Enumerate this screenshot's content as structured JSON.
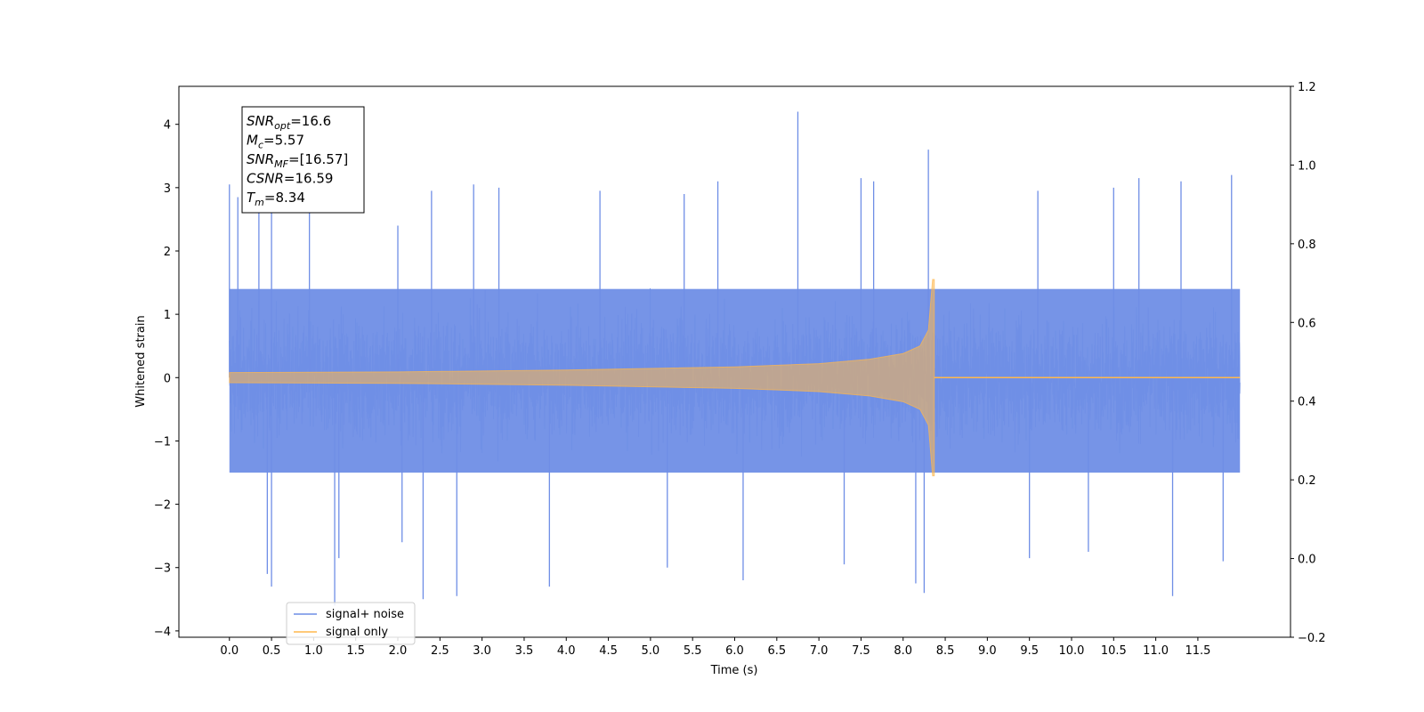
{
  "chart_data": {
    "type": "line",
    "xlabel": "Time (s)",
    "ylabel": "Whitened strain",
    "xlim": [
      -0.6,
      12.6
    ],
    "ylim": [
      -4.1,
      4.6
    ],
    "y2lim": [
      -0.2,
      1.2
    ],
    "x_ticks": [
      0.0,
      0.5,
      1.0,
      1.5,
      2.0,
      2.5,
      3.0,
      3.5,
      4.0,
      4.5,
      5.0,
      5.5,
      6.0,
      6.5,
      7.0,
      7.5,
      8.0,
      8.5,
      9.0,
      9.5,
      10.0,
      10.5,
      11.0,
      11.5
    ],
    "x_tick_labels": [
      "0.0",
      "0.5",
      "1.0",
      "1.5",
      "2.0",
      "2.5",
      "3.0",
      "3.5",
      "4.0",
      "4.5",
      "5.0",
      "5.5",
      "6.0",
      "6.5",
      "7.0",
      "7.5",
      "8.0",
      "8.5",
      "9.0",
      "9.5",
      "10.0",
      "10.5",
      "11.0",
      "11.5"
    ],
    "y_ticks": [
      -4,
      -3,
      -2,
      -1,
      0,
      1,
      2,
      3,
      4
    ],
    "y_tick_labels": [
      "−4",
      "−3",
      "−2",
      "−1",
      "0",
      "1",
      "2",
      "3",
      "4"
    ],
    "y2_ticks": [
      -0.2,
      0.0,
      0.2,
      0.4,
      0.6,
      0.8,
      1.0,
      1.2
    ],
    "y2_tick_labels": [
      "−0.2",
      "0.0",
      "0.2",
      "0.4",
      "0.6",
      "0.8",
      "1.0",
      "1.2"
    ],
    "grid": false,
    "legend_position": "lower-left",
    "series": [
      {
        "name": "signal+ noise",
        "color": "#6f8ee6",
        "x_range": [
          0.0,
          12.0
        ],
        "noise_band": [
          -1.5,
          1.4
        ],
        "peaks_positive": [
          {
            "x": 0.0,
            "y": 3.05
          },
          {
            "x": 0.1,
            "y": 2.85
          },
          {
            "x": 0.35,
            "y": 2.6
          },
          {
            "x": 0.5,
            "y": 2.65
          },
          {
            "x": 0.95,
            "y": 3.1
          },
          {
            "x": 2.0,
            "y": 2.4
          },
          {
            "x": 2.4,
            "y": 2.95
          },
          {
            "x": 2.9,
            "y": 3.05
          },
          {
            "x": 3.2,
            "y": 3.0
          },
          {
            "x": 4.4,
            "y": 2.95
          },
          {
            "x": 5.4,
            "y": 2.9
          },
          {
            "x": 5.8,
            "y": 3.1
          },
          {
            "x": 6.75,
            "y": 4.2
          },
          {
            "x": 7.5,
            "y": 3.15
          },
          {
            "x": 7.65,
            "y": 3.1
          },
          {
            "x": 8.3,
            "y": 3.6
          },
          {
            "x": 9.6,
            "y": 2.95
          },
          {
            "x": 10.5,
            "y": 3.0
          },
          {
            "x": 10.8,
            "y": 3.15
          },
          {
            "x": 11.3,
            "y": 3.1
          },
          {
            "x": 11.9,
            "y": 3.2
          }
        ],
        "peaks_negative": [
          {
            "x": 0.5,
            "y": -3.3
          },
          {
            "x": 0.45,
            "y": -3.1
          },
          {
            "x": 1.25,
            "y": -3.6
          },
          {
            "x": 1.3,
            "y": -2.85
          },
          {
            "x": 2.05,
            "y": -2.6
          },
          {
            "x": 2.3,
            "y": -3.5
          },
          {
            "x": 2.7,
            "y": -3.45
          },
          {
            "x": 3.8,
            "y": -3.3
          },
          {
            "x": 5.2,
            "y": -3.0
          },
          {
            "x": 6.1,
            "y": -3.2
          },
          {
            "x": 7.3,
            "y": -2.95
          },
          {
            "x": 8.15,
            "y": -3.25
          },
          {
            "x": 8.25,
            "y": -3.4
          },
          {
            "x": 9.5,
            "y": -2.85
          },
          {
            "x": 10.2,
            "y": -2.75
          },
          {
            "x": 11.2,
            "y": -3.45
          },
          {
            "x": 11.8,
            "y": -2.9
          }
        ]
      },
      {
        "name": "signal only",
        "color": "#ffb84d",
        "x_range": [
          0.0,
          12.0
        ],
        "merger_time": 8.37,
        "envelope": [
          {
            "x": 0.0,
            "y": 0.08
          },
          {
            "x": 2.0,
            "y": 0.09
          },
          {
            "x": 4.0,
            "y": 0.12
          },
          {
            "x": 6.0,
            "y": 0.17
          },
          {
            "x": 7.0,
            "y": 0.22
          },
          {
            "x": 7.6,
            "y": 0.29
          },
          {
            "x": 8.0,
            "y": 0.38
          },
          {
            "x": 8.2,
            "y": 0.5
          },
          {
            "x": 8.3,
            "y": 0.75
          },
          {
            "x": 8.35,
            "y": 1.55
          }
        ],
        "post_merger_value": 0.0
      }
    ],
    "annotation": [
      {
        "base": "SNR",
        "sub": "opt",
        "value": "=16.6"
      },
      {
        "base": "M",
        "sub": "c",
        "value": "=5.57"
      },
      {
        "base": "SNR",
        "sub": "MF",
        "value": "=[16.57]"
      },
      {
        "base": "CSNR",
        "sub": "",
        "value": "=16.59"
      },
      {
        "base": "T",
        "sub": "m",
        "value": "=8.34"
      }
    ]
  }
}
